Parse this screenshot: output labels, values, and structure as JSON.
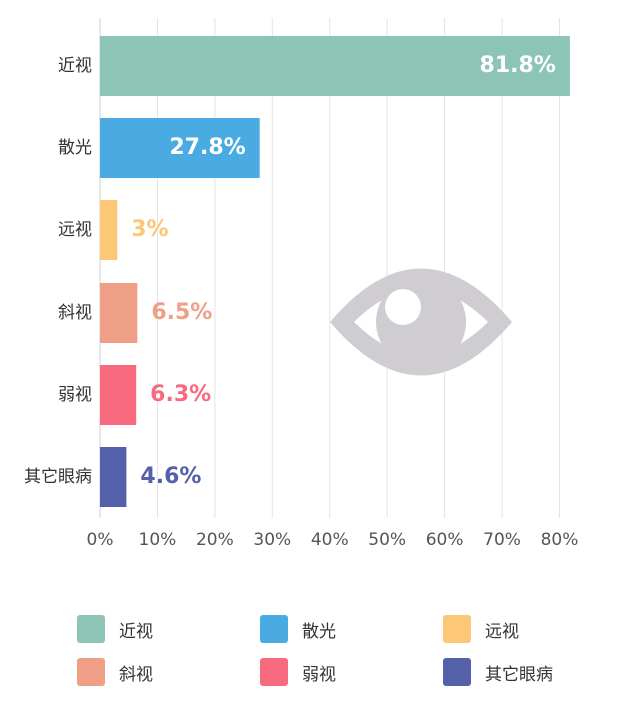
{
  "chart_data": {
    "type": "bar",
    "orientation": "horizontal",
    "categories": [
      "近视",
      "散光",
      "远视",
      "斜视",
      "弱视",
      "其它眼病"
    ],
    "values": [
      81.8,
      27.8,
      3,
      6.5,
      6.3,
      4.6
    ],
    "value_labels": [
      "81.8%",
      "27.8%",
      "3%",
      "6.5%",
      "6.3%",
      "4.6%"
    ],
    "colors": [
      "#8cc4b6",
      "#4aabe3",
      "#fcc877",
      "#ee9f86",
      "#f7697d",
      "#5560ab"
    ],
    "x_ticks": [
      "0%",
      "10%",
      "20%",
      "30%",
      "40%",
      "50%",
      "60%",
      "70%",
      "80%"
    ],
    "xlim": [
      0,
      82
    ],
    "grid": true,
    "legend_placement": "bottom",
    "icon": "eye-icon"
  },
  "legend": {
    "items": [
      {
        "label": "近视",
        "color": "#8cc4b6"
      },
      {
        "label": "散光",
        "color": "#4aabe3"
      },
      {
        "label": "远视",
        "color": "#fcc877"
      },
      {
        "label": "斜视",
        "color": "#ee9f86"
      },
      {
        "label": "弱视",
        "color": "#f7697d"
      },
      {
        "label": "其它眼病",
        "color": "#5560ab"
      }
    ]
  }
}
